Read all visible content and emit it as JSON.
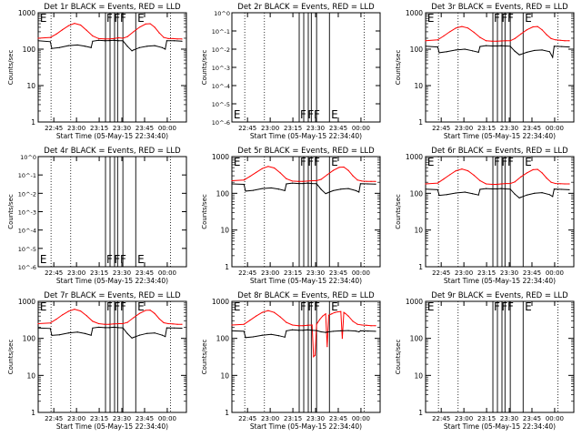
{
  "colors": {
    "events": "#000000",
    "lld": "#ff0000",
    "axis": "#000000",
    "background": "#ffffff"
  },
  "shared": {
    "xlabel": "Start Time (05-May-15 22:34:40)",
    "ylabel": "Counts/sec",
    "x_ticks": [
      "22:45",
      "23:00",
      "23:15",
      "23:30",
      "23:45",
      "00:00"
    ],
    "x_tick_minutes": [
      10.33,
      25.33,
      40.33,
      55.33,
      70.33,
      85.33
    ],
    "xlim_minutes": [
      0,
      98
    ],
    "log_y_ticks": [
      "1",
      "10",
      "100",
      "1000"
    ],
    "empty_y_ticks": [
      "10^-6",
      "10^-5",
      "10^-4",
      "10^-3",
      "10^-2",
      "10^-1",
      "10^0"
    ],
    "dotted_markers_minutes": [
      8.5,
      21.5,
      87.5
    ],
    "solid_markers_minutes": [
      44.5,
      47.5,
      50.5,
      52.5,
      56,
      64.5
    ],
    "marker_letters": [
      {
        "letter": "E",
        "at_minutes": 0.5
      },
      {
        "letter": "F",
        "at_minutes": 44.5
      },
      {
        "letter": "F",
        "at_minutes": 49.5
      },
      {
        "letter": "F",
        "at_minutes": 53.5
      },
      {
        "letter": "E",
        "at_minutes": 65.0
      }
    ]
  },
  "chart_data": [
    {
      "title": "Det 1r BLACK = Events, RED = LLD",
      "type": "line",
      "yscale": "log",
      "ylim": [
        1,
        1000
      ],
      "series": [
        {
          "name": "LLD",
          "x": [
            0,
            8,
            12,
            16,
            20,
            24,
            28,
            32,
            36,
            40,
            44,
            47,
            50,
            53,
            56,
            59,
            63,
            67,
            71,
            74,
            77,
            80,
            83,
            86,
            89,
            92,
            95
          ],
          "values": [
            200,
            210,
            260,
            340,
            440,
            510,
            460,
            330,
            230,
            195,
            190,
            190,
            195,
            205,
            200,
            220,
            300,
            400,
            490,
            500,
            400,
            280,
            210,
            195,
            195,
            190,
            190
          ]
        },
        {
          "name": "Events",
          "x": [
            0,
            8,
            9,
            14,
            20,
            26,
            31,
            35,
            36,
            40,
            44,
            47,
            50,
            53,
            56,
            59,
            62,
            63,
            67,
            72,
            77,
            82,
            84,
            85,
            90,
            95
          ],
          "values": [
            170,
            160,
            105,
            110,
            125,
            130,
            120,
            110,
            165,
            175,
            170,
            172,
            175,
            170,
            170,
            120,
            90,
            95,
            110,
            120,
            125,
            110,
            100,
            170,
            170,
            165
          ]
        }
      ]
    },
    {
      "title": "Det 2r BLACK = Events, RED = LLD",
      "type": "line",
      "yscale": "log",
      "ylim": [
        1e-06,
        1
      ],
      "series": []
    },
    {
      "title": "Det 3r BLACK = Events, RED = LLD",
      "type": "line",
      "yscale": "log",
      "ylim": [
        1,
        1000
      ],
      "series": [
        {
          "name": "LLD",
          "x": [
            0,
            8,
            12,
            16,
            20,
            24,
            28,
            32,
            36,
            40,
            44,
            47,
            50,
            53,
            56,
            59,
            63,
            67,
            71,
            74,
            77,
            80,
            83,
            86,
            89,
            92,
            95
          ],
          "values": [
            170,
            180,
            230,
            300,
            380,
            420,
            380,
            290,
            210,
            170,
            165,
            165,
            168,
            170,
            170,
            195,
            260,
            340,
            410,
            420,
            340,
            250,
            195,
            180,
            175,
            170,
            170
          ]
        },
        {
          "name": "Events",
          "x": [
            0,
            8,
            9,
            14,
            20,
            26,
            31,
            35,
            36,
            40,
            44,
            47,
            50,
            53,
            56,
            59,
            62,
            63,
            67,
            72,
            77,
            82,
            84,
            85,
            90,
            95
          ],
          "values": [
            120,
            115,
            80,
            85,
            95,
            100,
            90,
            82,
            118,
            125,
            122,
            122,
            124,
            122,
            120,
            88,
            70,
            72,
            82,
            92,
            95,
            85,
            60,
            120,
            118,
            115
          ]
        }
      ]
    },
    {
      "title": "Det 4r BLACK = Events, RED = LLD",
      "type": "line",
      "yscale": "log",
      "ylim": [
        1e-06,
        1
      ],
      "series": []
    },
    {
      "title": "Det 5r BLACK = Events, RED = LLD",
      "type": "line",
      "yscale": "log",
      "ylim": [
        1,
        1000
      ],
      "series": [
        {
          "name": "LLD",
          "x": [
            0,
            8,
            12,
            16,
            20,
            24,
            28,
            32,
            36,
            40,
            44,
            47,
            50,
            53,
            56,
            59,
            63,
            67,
            71,
            74,
            77,
            80,
            83,
            86,
            89,
            92,
            95
          ],
          "values": [
            220,
            230,
            290,
            370,
            470,
            540,
            490,
            360,
            250,
            215,
            210,
            210,
            215,
            220,
            220,
            240,
            320,
            420,
            510,
            520,
            420,
            300,
            230,
            215,
            212,
            210,
            210
          ]
        },
        {
          "name": "Events",
          "x": [
            0,
            8,
            9,
            14,
            20,
            26,
            31,
            35,
            36,
            40,
            44,
            47,
            50,
            53,
            56,
            59,
            62,
            63,
            67,
            72,
            77,
            82,
            84,
            85,
            90,
            95
          ],
          "values": [
            180,
            175,
            115,
            120,
            135,
            140,
            130,
            118,
            180,
            190,
            185,
            185,
            190,
            185,
            182,
            128,
            98,
            102,
            118,
            130,
            135,
            118,
            108,
            182,
            180,
            178
          ]
        }
      ]
    },
    {
      "title": "Det 6r BLACK = Events, RED = LLD",
      "type": "line",
      "yscale": "log",
      "ylim": [
        1,
        1000
      ],
      "series": [
        {
          "name": "LLD",
          "x": [
            0,
            8,
            12,
            16,
            20,
            24,
            28,
            32,
            36,
            40,
            44,
            47,
            50,
            53,
            56,
            59,
            63,
            67,
            71,
            74,
            77,
            80,
            83,
            86,
            89,
            92,
            95
          ],
          "values": [
            180,
            190,
            245,
            320,
            410,
            460,
            410,
            310,
            220,
            180,
            175,
            175,
            180,
            185,
            185,
            205,
            280,
            360,
            440,
            450,
            360,
            260,
            200,
            185,
            182,
            180,
            180
          ]
        },
        {
          "name": "Events",
          "x": [
            0,
            8,
            9,
            14,
            20,
            26,
            31,
            35,
            36,
            40,
            44,
            47,
            50,
            53,
            56,
            59,
            62,
            63,
            67,
            72,
            77,
            82,
            84,
            85,
            90,
            95
          ],
          "values": [
            130,
            125,
            88,
            92,
            102,
            108,
            98,
            90,
            128,
            135,
            132,
            132,
            135,
            132,
            130,
            95,
            75,
            78,
            90,
            100,
            104,
            92,
            82,
            130,
            128,
            125
          ]
        }
      ]
    },
    {
      "title": "Det 7r BLACK = Events, RED = LLD",
      "type": "line",
      "yscale": "log",
      "ylim": [
        1,
        1000
      ],
      "series": [
        {
          "name": "LLD",
          "x": [
            0,
            8,
            12,
            16,
            20,
            24,
            28,
            32,
            36,
            40,
            44,
            47,
            50,
            53,
            56,
            59,
            63,
            67,
            71,
            74,
            77,
            80,
            83,
            86,
            89,
            92,
            95
          ],
          "values": [
            250,
            260,
            330,
            430,
            540,
            610,
            550,
            410,
            290,
            250,
            240,
            240,
            245,
            250,
            250,
            270,
            360,
            470,
            570,
            580,
            470,
            340,
            265,
            250,
            245,
            240,
            240
          ]
        },
        {
          "name": "Events",
          "x": [
            0,
            8,
            9,
            14,
            20,
            26,
            31,
            35,
            36,
            40,
            44,
            47,
            50,
            53,
            56,
            59,
            62,
            63,
            67,
            72,
            77,
            82,
            84,
            85,
            90,
            95
          ],
          "values": [
            190,
            185,
            120,
            125,
            140,
            148,
            135,
            122,
            190,
            200,
            195,
            195,
            200,
            195,
            192,
            135,
            102,
            106,
            122,
            136,
            140,
            122,
            112,
            192,
            190,
            188
          ]
        }
      ]
    },
    {
      "title": "Det 8r BLACK = Events, RED = LLD",
      "type": "line",
      "yscale": "log",
      "ylim": [
        1,
        1000
      ],
      "series": [
        {
          "name": "LLD",
          "x": [
            0,
            8,
            12,
            16,
            20,
            24,
            28,
            32,
            36,
            40,
            44,
            47,
            50,
            53,
            54,
            55,
            56,
            58,
            60,
            62,
            63,
            64,
            66,
            68,
            70,
            72,
            73,
            74,
            75,
            77,
            80,
            83,
            86,
            89,
            92,
            95
          ],
          "values": [
            230,
            240,
            310,
            400,
            500,
            560,
            500,
            380,
            270,
            230,
            220,
            220,
            225,
            230,
            32,
            35,
            240,
            320,
            400,
            460,
            60,
            420,
            460,
            500,
            520,
            530,
            100,
            500,
            470,
            400,
            290,
            240,
            230,
            225,
            220,
            220
          ]
        },
        {
          "name": "Events",
          "x": [
            0,
            8,
            9,
            14,
            20,
            26,
            31,
            35,
            36,
            40,
            44,
            47,
            50,
            53,
            56,
            59,
            62,
            63,
            67,
            72,
            77,
            82,
            84,
            85,
            90,
            95
          ],
          "values": [
            160,
            155,
            105,
            110,
            122,
            128,
            118,
            108,
            160,
            170,
            165,
            165,
            170,
            165,
            162,
            150,
            145,
            148,
            155,
            160,
            162,
            158,
            150,
            160,
            158,
            155
          ]
        }
      ]
    },
    {
      "title": "Det 9r BLACK = Events, RED = LLD",
      "type": "line",
      "yscale": "log",
      "ylim": [
        1,
        1000
      ],
      "series": []
    }
  ]
}
